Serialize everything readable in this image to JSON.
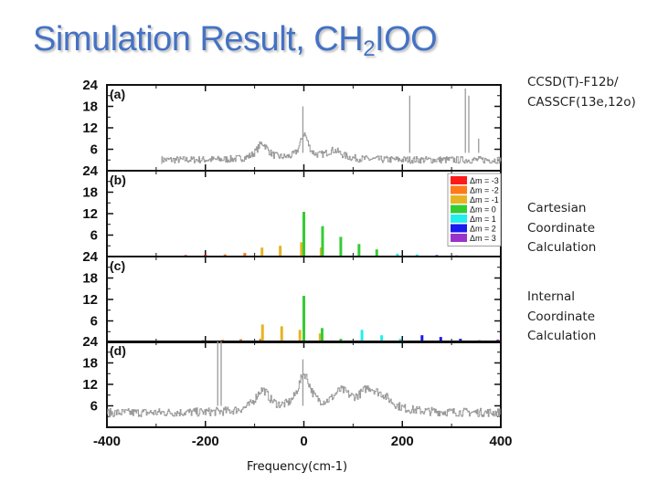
{
  "slide": {
    "title_main": "Simulation Result, CH",
    "title_sub": "2",
    "title_tail": "IOO",
    "method_note": "CCSD(T)-F12b/\nCASSCF(13e,12o)",
    "cartesian_note": "Cartesian\nCoordinate\nCalculation",
    "internal_note": "Internal\nCoordinate\nCalculation",
    "x_axis_title": "Frequency(cm-1)"
  },
  "chart_data": {
    "type": "bar",
    "title": "",
    "xlabel": "Frequency(cm-1)",
    "ylabel": "",
    "xlim": [
      -400,
      400
    ],
    "ylim": [
      0,
      24
    ],
    "x_ticks": [
      -400,
      -200,
      0,
      200,
      400
    ],
    "y_ticks": [
      6,
      12,
      18,
      24
    ],
    "legend": {
      "entries": [
        "Δm = -3",
        "Δm = -2",
        "Δm = -1",
        "Δm = 0",
        "Δm = 1",
        "Δm = 2",
        "Δm = 3"
      ],
      "colors": [
        "#ff1a1a",
        "#ff7a1a",
        "#e6b422",
        "#33cc33",
        "#22eeee",
        "#1a1aee",
        "#9933cc"
      ],
      "placement": "top-right of panel (b)"
    },
    "panels": [
      {
        "tag": "(a)",
        "kind": "experimental",
        "baseline": 3,
        "noise_amp": 1.0,
        "x_start": -290,
        "x_end": 400,
        "peaks": [
          {
            "x": -85,
            "height": 4.5,
            "width": 14
          },
          {
            "x": 0,
            "height": 7,
            "width": 10
          },
          {
            "x": 60,
            "height": 2.5,
            "width": 20
          }
        ],
        "spikes": [
          {
            "x": -2,
            "y": 18
          },
          {
            "x": 215,
            "y": 21
          },
          {
            "x": 328,
            "y": 23
          },
          {
            "x": 335,
            "y": 21
          },
          {
            "x": 355,
            "y": 9
          }
        ]
      },
      {
        "tag": "(b)",
        "kind": "stick",
        "sticks": [
          {
            "x": -240,
            "y": 0.4,
            "dm": -3
          },
          {
            "x": -200,
            "y": 0.5,
            "dm": -3
          },
          {
            "x": -160,
            "y": 0.6,
            "dm": -2
          },
          {
            "x": -120,
            "y": 1.0,
            "dm": -2
          },
          {
            "x": -85,
            "y": 2.5,
            "dm": -1
          },
          {
            "x": -48,
            "y": 3.0,
            "dm": -1
          },
          {
            "x": -5,
            "y": 4.0,
            "dm": -1
          },
          {
            "x": 0,
            "y": 12.5,
            "dm": 0
          },
          {
            "x": 35,
            "y": 2.5,
            "dm": -1
          },
          {
            "x": 38,
            "y": 8.5,
            "dm": 0
          },
          {
            "x": 75,
            "y": 5.5,
            "dm": 0
          },
          {
            "x": 112,
            "y": 3.5,
            "dm": 0
          },
          {
            "x": 148,
            "y": 2.0,
            "dm": 0
          },
          {
            "x": 190,
            "y": 0.8,
            "dm": 1
          },
          {
            "x": 230,
            "y": 0.6,
            "dm": 1
          },
          {
            "x": 270,
            "y": 0.4,
            "dm": 2
          },
          {
            "x": 310,
            "y": 0.3,
            "dm": 2
          }
        ]
      },
      {
        "tag": "(c)",
        "kind": "stick",
        "sticks": [
          {
            "x": -245,
            "y": 0.5,
            "dm": -3
          },
          {
            "x": -205,
            "y": 0.6,
            "dm": -3
          },
          {
            "x": -165,
            "y": 0.7,
            "dm": -2
          },
          {
            "x": -128,
            "y": 0.9,
            "dm": -2
          },
          {
            "x": -88,
            "y": 1.0,
            "dm": -2
          },
          {
            "x": -84,
            "y": 5.0,
            "dm": -1
          },
          {
            "x": -45,
            "y": 4.5,
            "dm": -1
          },
          {
            "x": -8,
            "y": 3.5,
            "dm": -1
          },
          {
            "x": 0,
            "y": 13.0,
            "dm": 0
          },
          {
            "x": 33,
            "y": 2.5,
            "dm": -1
          },
          {
            "x": 37,
            "y": 4.0,
            "dm": 0
          },
          {
            "x": 75,
            "y": 1.0,
            "dm": 0
          },
          {
            "x": 118,
            "y": 3.5,
            "dm": 1
          },
          {
            "x": 158,
            "y": 2.0,
            "dm": 1
          },
          {
            "x": 196,
            "y": 1.0,
            "dm": 1
          },
          {
            "x": 240,
            "y": 2.0,
            "dm": 2
          },
          {
            "x": 278,
            "y": 1.5,
            "dm": 2
          },
          {
            "x": 318,
            "y": 1.0,
            "dm": 2
          },
          {
            "x": 356,
            "y": 0.6,
            "dm": 3
          },
          {
            "x": 394,
            "y": 0.8,
            "dm": 3
          }
        ]
      },
      {
        "tag": "(d)",
        "kind": "experimental",
        "baseline": 4,
        "noise_amp": 1.2,
        "x_start": -400,
        "x_end": 400,
        "peaks": [
          {
            "x": -85,
            "height": 6,
            "width": 18
          },
          {
            "x": 0,
            "height": 10,
            "width": 16
          },
          {
            "x": 75,
            "height": 5,
            "width": 22
          },
          {
            "x": 130,
            "height": 5,
            "width": 22
          },
          {
            "x": 160,
            "height": 3,
            "width": 25
          }
        ],
        "spikes": [
          {
            "x": -175,
            "y": 24
          },
          {
            "x": -168,
            "y": 24
          },
          {
            "x": -2,
            "y": 19
          }
        ]
      }
    ]
  }
}
